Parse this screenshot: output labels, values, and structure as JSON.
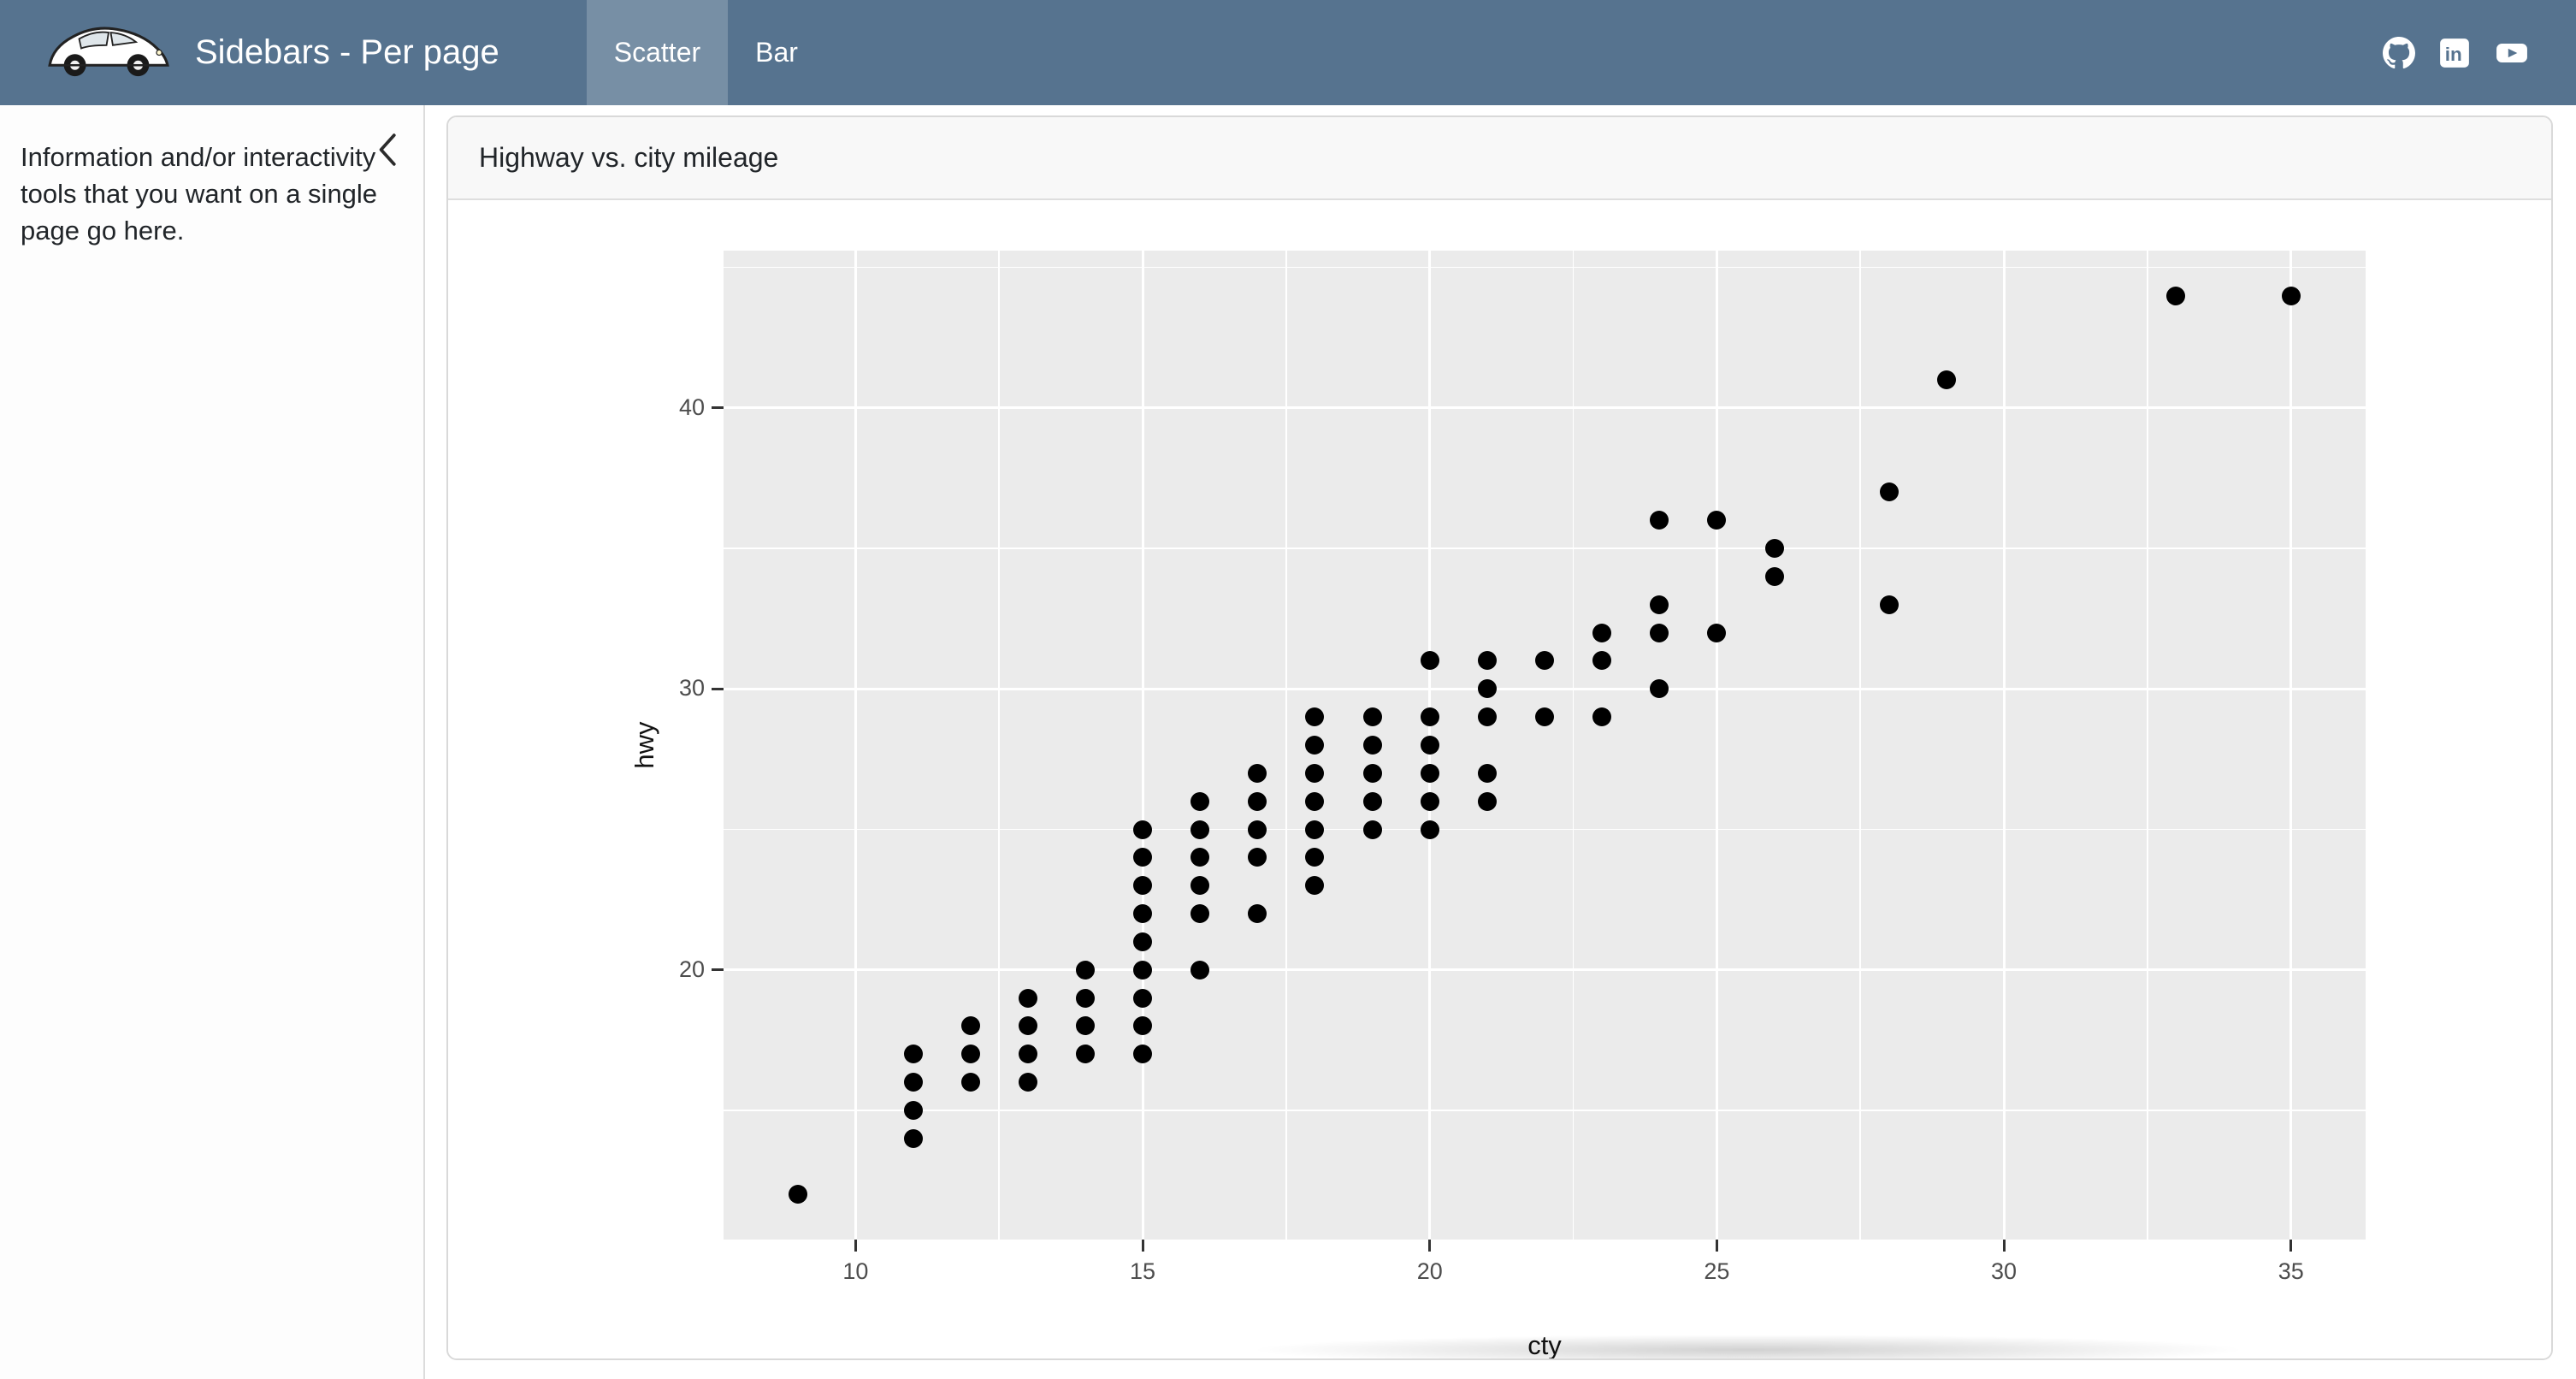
{
  "navbar": {
    "title": "Sidebars - Per page",
    "logo": "beetle-car-logo",
    "tabs": [
      {
        "label": "Scatter",
        "active": true
      },
      {
        "label": "Bar",
        "active": false
      }
    ],
    "social_icons": [
      "github",
      "linkedin",
      "youtube"
    ],
    "colors": {
      "bg": "#56738f",
      "active_tab_overlay": "rgba(255,255,255,0.20)"
    }
  },
  "sidebar": {
    "text": "Information and/or interactivity tools that you want on a single page go here.",
    "collapse_icon": "chevron-left"
  },
  "card": {
    "title": "Highway vs. city mileage"
  },
  "chart_data": {
    "type": "scatter",
    "title": "Highway vs. city mileage",
    "xlabel": "cty",
    "ylabel": "hwy",
    "xlim": [
      7.7,
      36.3
    ],
    "ylim": [
      10.4,
      45.6
    ],
    "x_ticks": [
      10,
      15,
      20,
      25,
      30,
      35
    ],
    "y_ticks": [
      20,
      30,
      40
    ],
    "x_minor": [
      12.5,
      17.5,
      22.5,
      27.5,
      32.5
    ],
    "y_minor": [
      15,
      25,
      35,
      45
    ],
    "grid": true,
    "legend": "none",
    "panel_bg": "#ebebeb",
    "grid_color": "#ffffff",
    "point_color": "#000000",
    "points": [
      [
        9,
        12
      ],
      [
        11,
        14
      ],
      [
        11,
        15
      ],
      [
        11,
        16
      ],
      [
        11,
        17
      ],
      [
        12,
        16
      ],
      [
        12,
        17
      ],
      [
        12,
        18
      ],
      [
        13,
        16
      ],
      [
        13,
        17
      ],
      [
        13,
        18
      ],
      [
        13,
        19
      ],
      [
        14,
        17
      ],
      [
        14,
        18
      ],
      [
        14,
        19
      ],
      [
        14,
        20
      ],
      [
        15,
        17
      ],
      [
        15,
        18
      ],
      [
        15,
        19
      ],
      [
        15,
        20
      ],
      [
        15,
        21
      ],
      [
        15,
        22
      ],
      [
        15,
        23
      ],
      [
        15,
        24
      ],
      [
        15,
        25
      ],
      [
        16,
        20
      ],
      [
        16,
        22
      ],
      [
        16,
        23
      ],
      [
        16,
        24
      ],
      [
        16,
        25
      ],
      [
        16,
        26
      ],
      [
        17,
        22
      ],
      [
        17,
        24
      ],
      [
        17,
        25
      ],
      [
        17,
        26
      ],
      [
        17,
        27
      ],
      [
        18,
        23
      ],
      [
        18,
        24
      ],
      [
        18,
        25
      ],
      [
        18,
        26
      ],
      [
        18,
        27
      ],
      [
        18,
        28
      ],
      [
        18,
        29
      ],
      [
        19,
        25
      ],
      [
        19,
        26
      ],
      [
        19,
        27
      ],
      [
        19,
        28
      ],
      [
        19,
        29
      ],
      [
        20,
        25
      ],
      [
        20,
        26
      ],
      [
        20,
        27
      ],
      [
        20,
        28
      ],
      [
        20,
        29
      ],
      [
        20,
        31
      ],
      [
        21,
        26
      ],
      [
        21,
        27
      ],
      [
        21,
        29
      ],
      [
        21,
        30
      ],
      [
        21,
        31
      ],
      [
        22,
        29
      ],
      [
        22,
        31
      ],
      [
        23,
        29
      ],
      [
        23,
        31
      ],
      [
        23,
        32
      ],
      [
        24,
        30
      ],
      [
        24,
        32
      ],
      [
        24,
        33
      ],
      [
        24,
        36
      ],
      [
        25,
        32
      ],
      [
        25,
        36
      ],
      [
        26,
        34
      ],
      [
        26,
        35
      ],
      [
        28,
        33
      ],
      [
        28,
        37
      ],
      [
        29,
        41
      ],
      [
        33,
        44
      ],
      [
        35,
        44
      ]
    ]
  }
}
